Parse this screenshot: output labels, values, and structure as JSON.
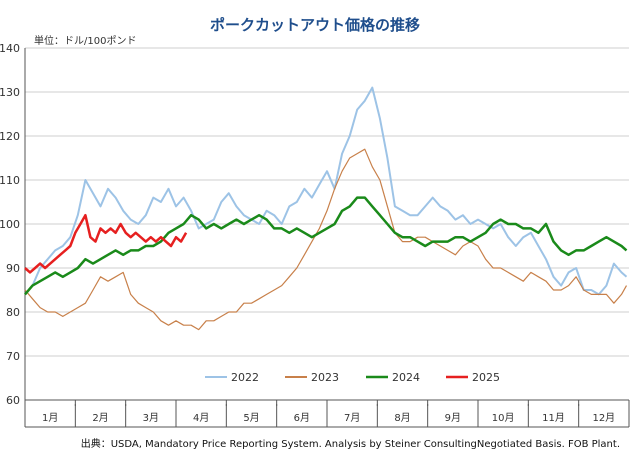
{
  "chart_data": {
    "type": "line",
    "title": "ポークカットアウト価格の推移",
    "unit_label": "単位：ドル/100ポンド",
    "source": "出典：USDA, Mandatory Price Reporting System. Analysis by Steiner ConsultingNegotiated Basis. FOB Plant.",
    "ylim": [
      60,
      140
    ],
    "yticks": [
      60,
      70,
      80,
      90,
      100,
      110,
      120,
      130,
      140
    ],
    "categories": [
      "1月",
      "2月",
      "3月",
      "4月",
      "5月",
      "6月",
      "7月",
      "8月",
      "9月",
      "10月",
      "11月",
      "12月"
    ],
    "grid": true,
    "legend_position": "bottom",
    "series": [
      {
        "name": "2022",
        "color": "#9dc3e6",
        "width": 2,
        "x": [
          0.0,
          0.15,
          0.3,
          0.45,
          0.6,
          0.75,
          0.9,
          1.05,
          1.2,
          1.35,
          1.5,
          1.65,
          1.8,
          1.95,
          2.1,
          2.25,
          2.4,
          2.55,
          2.7,
          2.85,
          3.0,
          3.15,
          3.3,
          3.45,
          3.6,
          3.75,
          3.9,
          4.05,
          4.2,
          4.35,
          4.5,
          4.65,
          4.8,
          4.95,
          5.1,
          5.25,
          5.4,
          5.55,
          5.7,
          5.85,
          6.0,
          6.15,
          6.3,
          6.45,
          6.6,
          6.75,
          6.9,
          7.05,
          7.2,
          7.35,
          7.5,
          7.65,
          7.8,
          7.95,
          8.1,
          8.25,
          8.4,
          8.55,
          8.7,
          8.85,
          9.0,
          9.15,
          9.3,
          9.45,
          9.6,
          9.75,
          9.9,
          10.05,
          10.2,
          10.35,
          10.5,
          10.65,
          10.8,
          10.95,
          11.1,
          11.25,
          11.4,
          11.55,
          11.7,
          11.85,
          11.95
        ],
        "values": [
          84,
          86,
          90,
          92,
          94,
          95,
          97,
          102,
          110,
          107,
          104,
          108,
          106,
          103,
          101,
          100,
          102,
          106,
          105,
          108,
          104,
          106,
          103,
          99,
          100,
          101,
          105,
          107,
          104,
          102,
          101,
          100,
          103,
          102,
          100,
          104,
          105,
          108,
          106,
          109,
          112,
          108,
          116,
          120,
          126,
          128,
          131,
          124,
          115,
          104,
          103,
          102,
          102,
          104,
          106,
          104,
          103,
          101,
          102,
          100,
          101,
          100,
          99,
          100,
          97,
          95,
          97,
          98,
          95,
          92,
          88,
          86,
          89,
          90,
          85,
          85,
          84,
          86,
          91,
          89,
          88
        ]
      },
      {
        "name": "2023",
        "color": "#c8804a",
        "width": 1.2,
        "x": [
          0.0,
          0.15,
          0.3,
          0.45,
          0.6,
          0.75,
          0.9,
          1.05,
          1.2,
          1.35,
          1.5,
          1.65,
          1.8,
          1.95,
          2.1,
          2.25,
          2.4,
          2.55,
          2.7,
          2.85,
          3.0,
          3.15,
          3.3,
          3.45,
          3.6,
          3.75,
          3.9,
          4.05,
          4.2,
          4.35,
          4.5,
          4.65,
          4.8,
          4.95,
          5.1,
          5.25,
          5.4,
          5.55,
          5.7,
          5.85,
          6.0,
          6.15,
          6.3,
          6.45,
          6.6,
          6.75,
          6.9,
          7.05,
          7.2,
          7.35,
          7.5,
          7.65,
          7.8,
          7.95,
          8.1,
          8.25,
          8.4,
          8.55,
          8.7,
          8.85,
          9.0,
          9.15,
          9.3,
          9.45,
          9.6,
          9.75,
          9.9,
          10.05,
          10.2,
          10.35,
          10.5,
          10.65,
          10.8,
          10.95,
          11.1,
          11.25,
          11.4,
          11.55,
          11.7,
          11.85,
          11.95
        ],
        "values": [
          85,
          83,
          81,
          80,
          80,
          79,
          80,
          81,
          82,
          85,
          88,
          87,
          88,
          89,
          84,
          82,
          81,
          80,
          78,
          77,
          78,
          77,
          77,
          76,
          78,
          78,
          79,
          80,
          80,
          82,
          82,
          83,
          84,
          85,
          86,
          88,
          90,
          93,
          96,
          99,
          103,
          108,
          112,
          115,
          116,
          117,
          113,
          110,
          104,
          98,
          96,
          96,
          97,
          97,
          96,
          95,
          94,
          93,
          95,
          96,
          95,
          92,
          90,
          90,
          89,
          88,
          87,
          89,
          88,
          87,
          85,
          85,
          86,
          88,
          85,
          84,
          84,
          84,
          82,
          84,
          86
        ]
      },
      {
        "name": "2024",
        "color": "#1a8a1a",
        "width": 2.5,
        "x": [
          0.0,
          0.15,
          0.3,
          0.45,
          0.6,
          0.75,
          0.9,
          1.05,
          1.2,
          1.35,
          1.5,
          1.65,
          1.8,
          1.95,
          2.1,
          2.25,
          2.4,
          2.55,
          2.7,
          2.85,
          3.0,
          3.15,
          3.3,
          3.45,
          3.6,
          3.75,
          3.9,
          4.05,
          4.2,
          4.35,
          4.5,
          4.65,
          4.8,
          4.95,
          5.1,
          5.25,
          5.4,
          5.55,
          5.7,
          5.85,
          6.0,
          6.15,
          6.3,
          6.45,
          6.6,
          6.75,
          6.9,
          7.05,
          7.2,
          7.35,
          7.5,
          7.65,
          7.8,
          7.95,
          8.1,
          8.25,
          8.4,
          8.55,
          8.7,
          8.85,
          9.0,
          9.15,
          9.3,
          9.45,
          9.6,
          9.75,
          9.9,
          10.05,
          10.2,
          10.35,
          10.5,
          10.65,
          10.8,
          10.95,
          11.1,
          11.25,
          11.4,
          11.55,
          11.7,
          11.85,
          11.95
        ],
        "values": [
          84,
          86,
          87,
          88,
          89,
          88,
          89,
          90,
          92,
          91,
          92,
          93,
          94,
          93,
          94,
          94,
          95,
          95,
          96,
          98,
          99,
          100,
          102,
          101,
          99,
          100,
          99,
          100,
          101,
          100,
          101,
          102,
          101,
          99,
          99,
          98,
          99,
          98,
          97,
          98,
          99,
          100,
          103,
          104,
          106,
          106,
          104,
          102,
          100,
          98,
          97,
          97,
          96,
          95,
          96,
          96,
          96,
          97,
          97,
          96,
          97,
          98,
          100,
          101,
          100,
          100,
          99,
          99,
          98,
          100,
          96,
          94,
          93,
          94,
          94,
          95,
          96,
          97,
          96,
          95,
          94
        ]
      },
      {
        "name": "2025",
        "color": "#e62020",
        "width": 2.5,
        "x": [
          0.0,
          0.1,
          0.2,
          0.3,
          0.4,
          0.5,
          0.6,
          0.7,
          0.8,
          0.9,
          1.0,
          1.1,
          1.2,
          1.3,
          1.4,
          1.5,
          1.6,
          1.7,
          1.8,
          1.9,
          2.0,
          2.1,
          2.2,
          2.3,
          2.4,
          2.5,
          2.6,
          2.7,
          2.8,
          2.9,
          3.0,
          3.1,
          3.2
        ],
        "values": [
          90,
          89,
          90,
          91,
          90,
          91,
          92,
          93,
          94,
          95,
          98,
          100,
          102,
          97,
          96,
          99,
          98,
          99,
          98,
          100,
          98,
          97,
          98,
          97,
          96,
          97,
          96,
          97,
          96,
          95,
          97,
          96,
          98
        ]
      }
    ]
  }
}
